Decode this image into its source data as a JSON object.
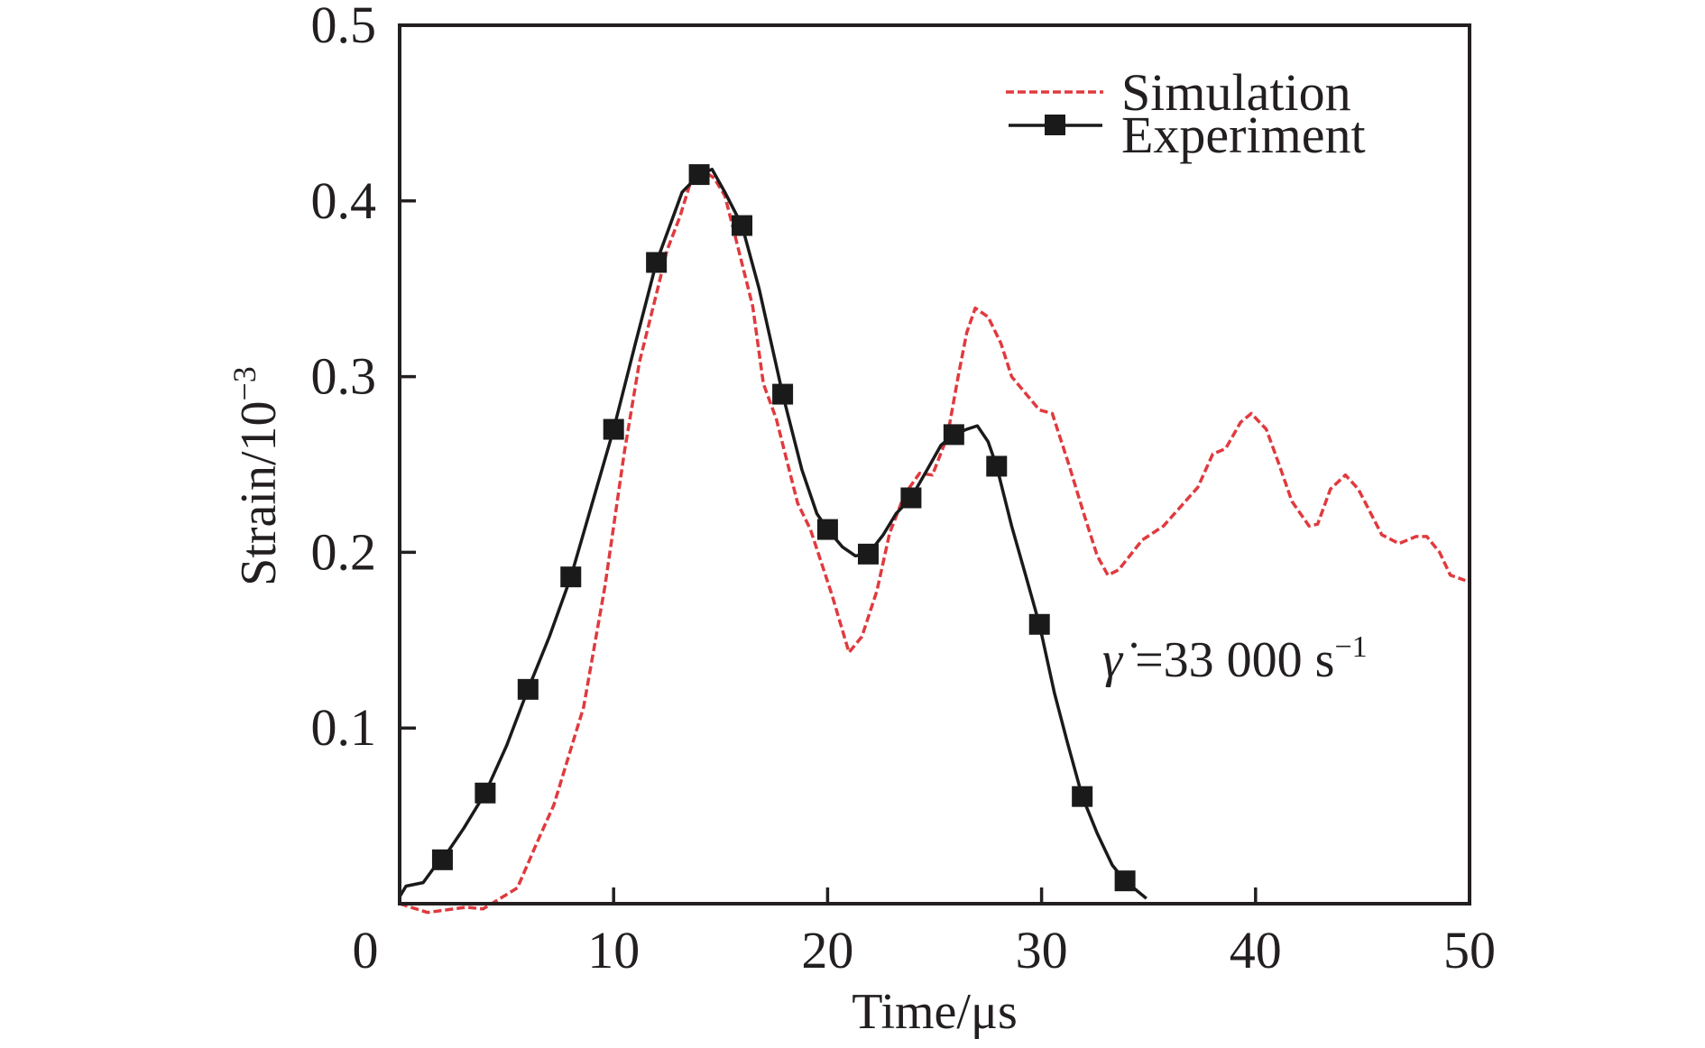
{
  "chart_data": {
    "type": "line",
    "title": "",
    "xlabel": "Time/μs",
    "ylabel_main": "Strain/10",
    "ylabel_exponent": "−3",
    "xlim": [
      0,
      50
    ],
    "ylim": [
      0,
      0.5
    ],
    "x_ticks": [
      0,
      10,
      20,
      30,
      40,
      50
    ],
    "x_tick_labels": [
      "0",
      "10",
      "20",
      "30",
      "40",
      "50"
    ],
    "y_ticks": [
      0.1,
      0.2,
      0.3,
      0.4,
      0.5
    ],
    "y_tick_labels": [
      "0.1",
      "0.2",
      "0.3",
      "0.4",
      "0.5"
    ],
    "grid": false,
    "legend_position": "top-right",
    "annotation": {
      "symbol": "γ̇",
      "text": " =33 000 s",
      "exponent": "−1",
      "anchor": {
        "x": 33.2,
        "y": 0.156
      }
    },
    "series": [
      {
        "name": "Simulation",
        "style": "dashed",
        "color": "#e03a3e",
        "marker": "none",
        "points": [
          [
            0,
            0
          ],
          [
            1.3,
            -0.005
          ],
          [
            3.1,
            -0.002
          ],
          [
            3.9,
            -0.003
          ],
          [
            5.5,
            0.009
          ],
          [
            6.5,
            0.037
          ],
          [
            7.2,
            0.056
          ],
          [
            8.6,
            0.112
          ],
          [
            9.6,
            0.181
          ],
          [
            10.5,
            0.257
          ],
          [
            11.2,
            0.308
          ],
          [
            12.0,
            0.347
          ],
          [
            12.5,
            0.372
          ],
          [
            13.1,
            0.391
          ],
          [
            13.6,
            0.411
          ],
          [
            14.1,
            0.418
          ],
          [
            14.7,
            0.413
          ],
          [
            15.2,
            0.403
          ],
          [
            15.7,
            0.379
          ],
          [
            16.5,
            0.34
          ],
          [
            17.0,
            0.296
          ],
          [
            17.6,
            0.276
          ],
          [
            18.6,
            0.228
          ],
          [
            19.2,
            0.213
          ],
          [
            20.2,
            0.176
          ],
          [
            21.0,
            0.143
          ],
          [
            21.6,
            0.152
          ],
          [
            22.3,
            0.178
          ],
          [
            22.9,
            0.211
          ],
          [
            23.6,
            0.233
          ],
          [
            24.3,
            0.245
          ],
          [
            24.9,
            0.244
          ],
          [
            25.6,
            0.266
          ],
          [
            26.1,
            0.3
          ],
          [
            26.5,
            0.325
          ],
          [
            26.9,
            0.339
          ],
          [
            27.5,
            0.334
          ],
          [
            28.1,
            0.319
          ],
          [
            28.6,
            0.3
          ],
          [
            29.9,
            0.281
          ],
          [
            30.5,
            0.279
          ],
          [
            31.3,
            0.249
          ],
          [
            32.0,
            0.221
          ],
          [
            32.6,
            0.198
          ],
          [
            33.1,
            0.187
          ],
          [
            33.6,
            0.19
          ],
          [
            34.7,
            0.207
          ],
          [
            35.7,
            0.215
          ],
          [
            37.3,
            0.237
          ],
          [
            38.0,
            0.256
          ],
          [
            38.6,
            0.259
          ],
          [
            39.3,
            0.274
          ],
          [
            39.8,
            0.279
          ],
          [
            40.5,
            0.27
          ],
          [
            41.1,
            0.25
          ],
          [
            41.7,
            0.229
          ],
          [
            42.5,
            0.215
          ],
          [
            42.9,
            0.216
          ],
          [
            43.5,
            0.236
          ],
          [
            44.2,
            0.244
          ],
          [
            44.8,
            0.236
          ],
          [
            45.9,
            0.21
          ],
          [
            46.7,
            0.205
          ],
          [
            47.5,
            0.209
          ],
          [
            48.0,
            0.209
          ],
          [
            48.6,
            0.2
          ],
          [
            49.1,
            0.187
          ],
          [
            49.8,
            0.184
          ]
        ]
      },
      {
        "name": "Experiment",
        "style": "solid",
        "color": "#1a1a1a",
        "marker": "square",
        "points": [
          [
            0,
            0.004
          ],
          [
            0.3,
            0.01
          ],
          [
            1.1,
            0.012
          ],
          [
            1.7,
            0.022
          ],
          [
            2.0,
            0.025
          ],
          [
            3.0,
            0.043
          ],
          [
            4.0,
            0.063
          ],
          [
            5.0,
            0.09
          ],
          [
            6.0,
            0.122
          ],
          [
            7.0,
            0.152
          ],
          [
            8.0,
            0.186
          ],
          [
            9.0,
            0.228
          ],
          [
            10.0,
            0.27
          ],
          [
            11.0,
            0.318
          ],
          [
            12.0,
            0.365
          ],
          [
            12.6,
            0.385
          ],
          [
            13.2,
            0.405
          ],
          [
            14.0,
            0.415
          ],
          [
            14.6,
            0.418
          ],
          [
            15.2,
            0.405
          ],
          [
            16.0,
            0.386
          ],
          [
            16.8,
            0.35
          ],
          [
            17.9,
            0.29
          ],
          [
            18.8,
            0.247
          ],
          [
            19.5,
            0.222
          ],
          [
            20.0,
            0.213
          ],
          [
            20.7,
            0.203
          ],
          [
            21.3,
            0.198
          ],
          [
            21.9,
            0.199
          ],
          [
            22.6,
            0.21
          ],
          [
            23.2,
            0.222
          ],
          [
            23.9,
            0.231
          ],
          [
            24.7,
            0.248
          ],
          [
            25.3,
            0.261
          ],
          [
            25.9,
            0.267
          ],
          [
            26.5,
            0.27
          ],
          [
            27.0,
            0.272
          ],
          [
            27.5,
            0.263
          ],
          [
            27.9,
            0.249
          ],
          [
            28.6,
            0.215
          ],
          [
            29.3,
            0.185
          ],
          [
            29.9,
            0.159
          ],
          [
            30.6,
            0.12
          ],
          [
            31.2,
            0.092
          ],
          [
            31.9,
            0.061
          ],
          [
            32.6,
            0.04
          ],
          [
            33.3,
            0.022
          ],
          [
            33.9,
            0.013
          ],
          [
            34.5,
            0.007
          ],
          [
            34.9,
            0.003
          ]
        ],
        "marker_points": [
          [
            2.0,
            0.025
          ],
          [
            4.0,
            0.063
          ],
          [
            6.0,
            0.122
          ],
          [
            8.0,
            0.186
          ],
          [
            10.0,
            0.27
          ],
          [
            12.0,
            0.365
          ],
          [
            14.0,
            0.415
          ],
          [
            16.0,
            0.386
          ],
          [
            17.9,
            0.29
          ],
          [
            20.0,
            0.213
          ],
          [
            21.9,
            0.199
          ],
          [
            23.9,
            0.231
          ],
          [
            25.9,
            0.267
          ],
          [
            27.9,
            0.249
          ],
          [
            29.9,
            0.159
          ],
          [
            31.9,
            0.061
          ],
          [
            33.9,
            0.013
          ]
        ]
      }
    ]
  }
}
